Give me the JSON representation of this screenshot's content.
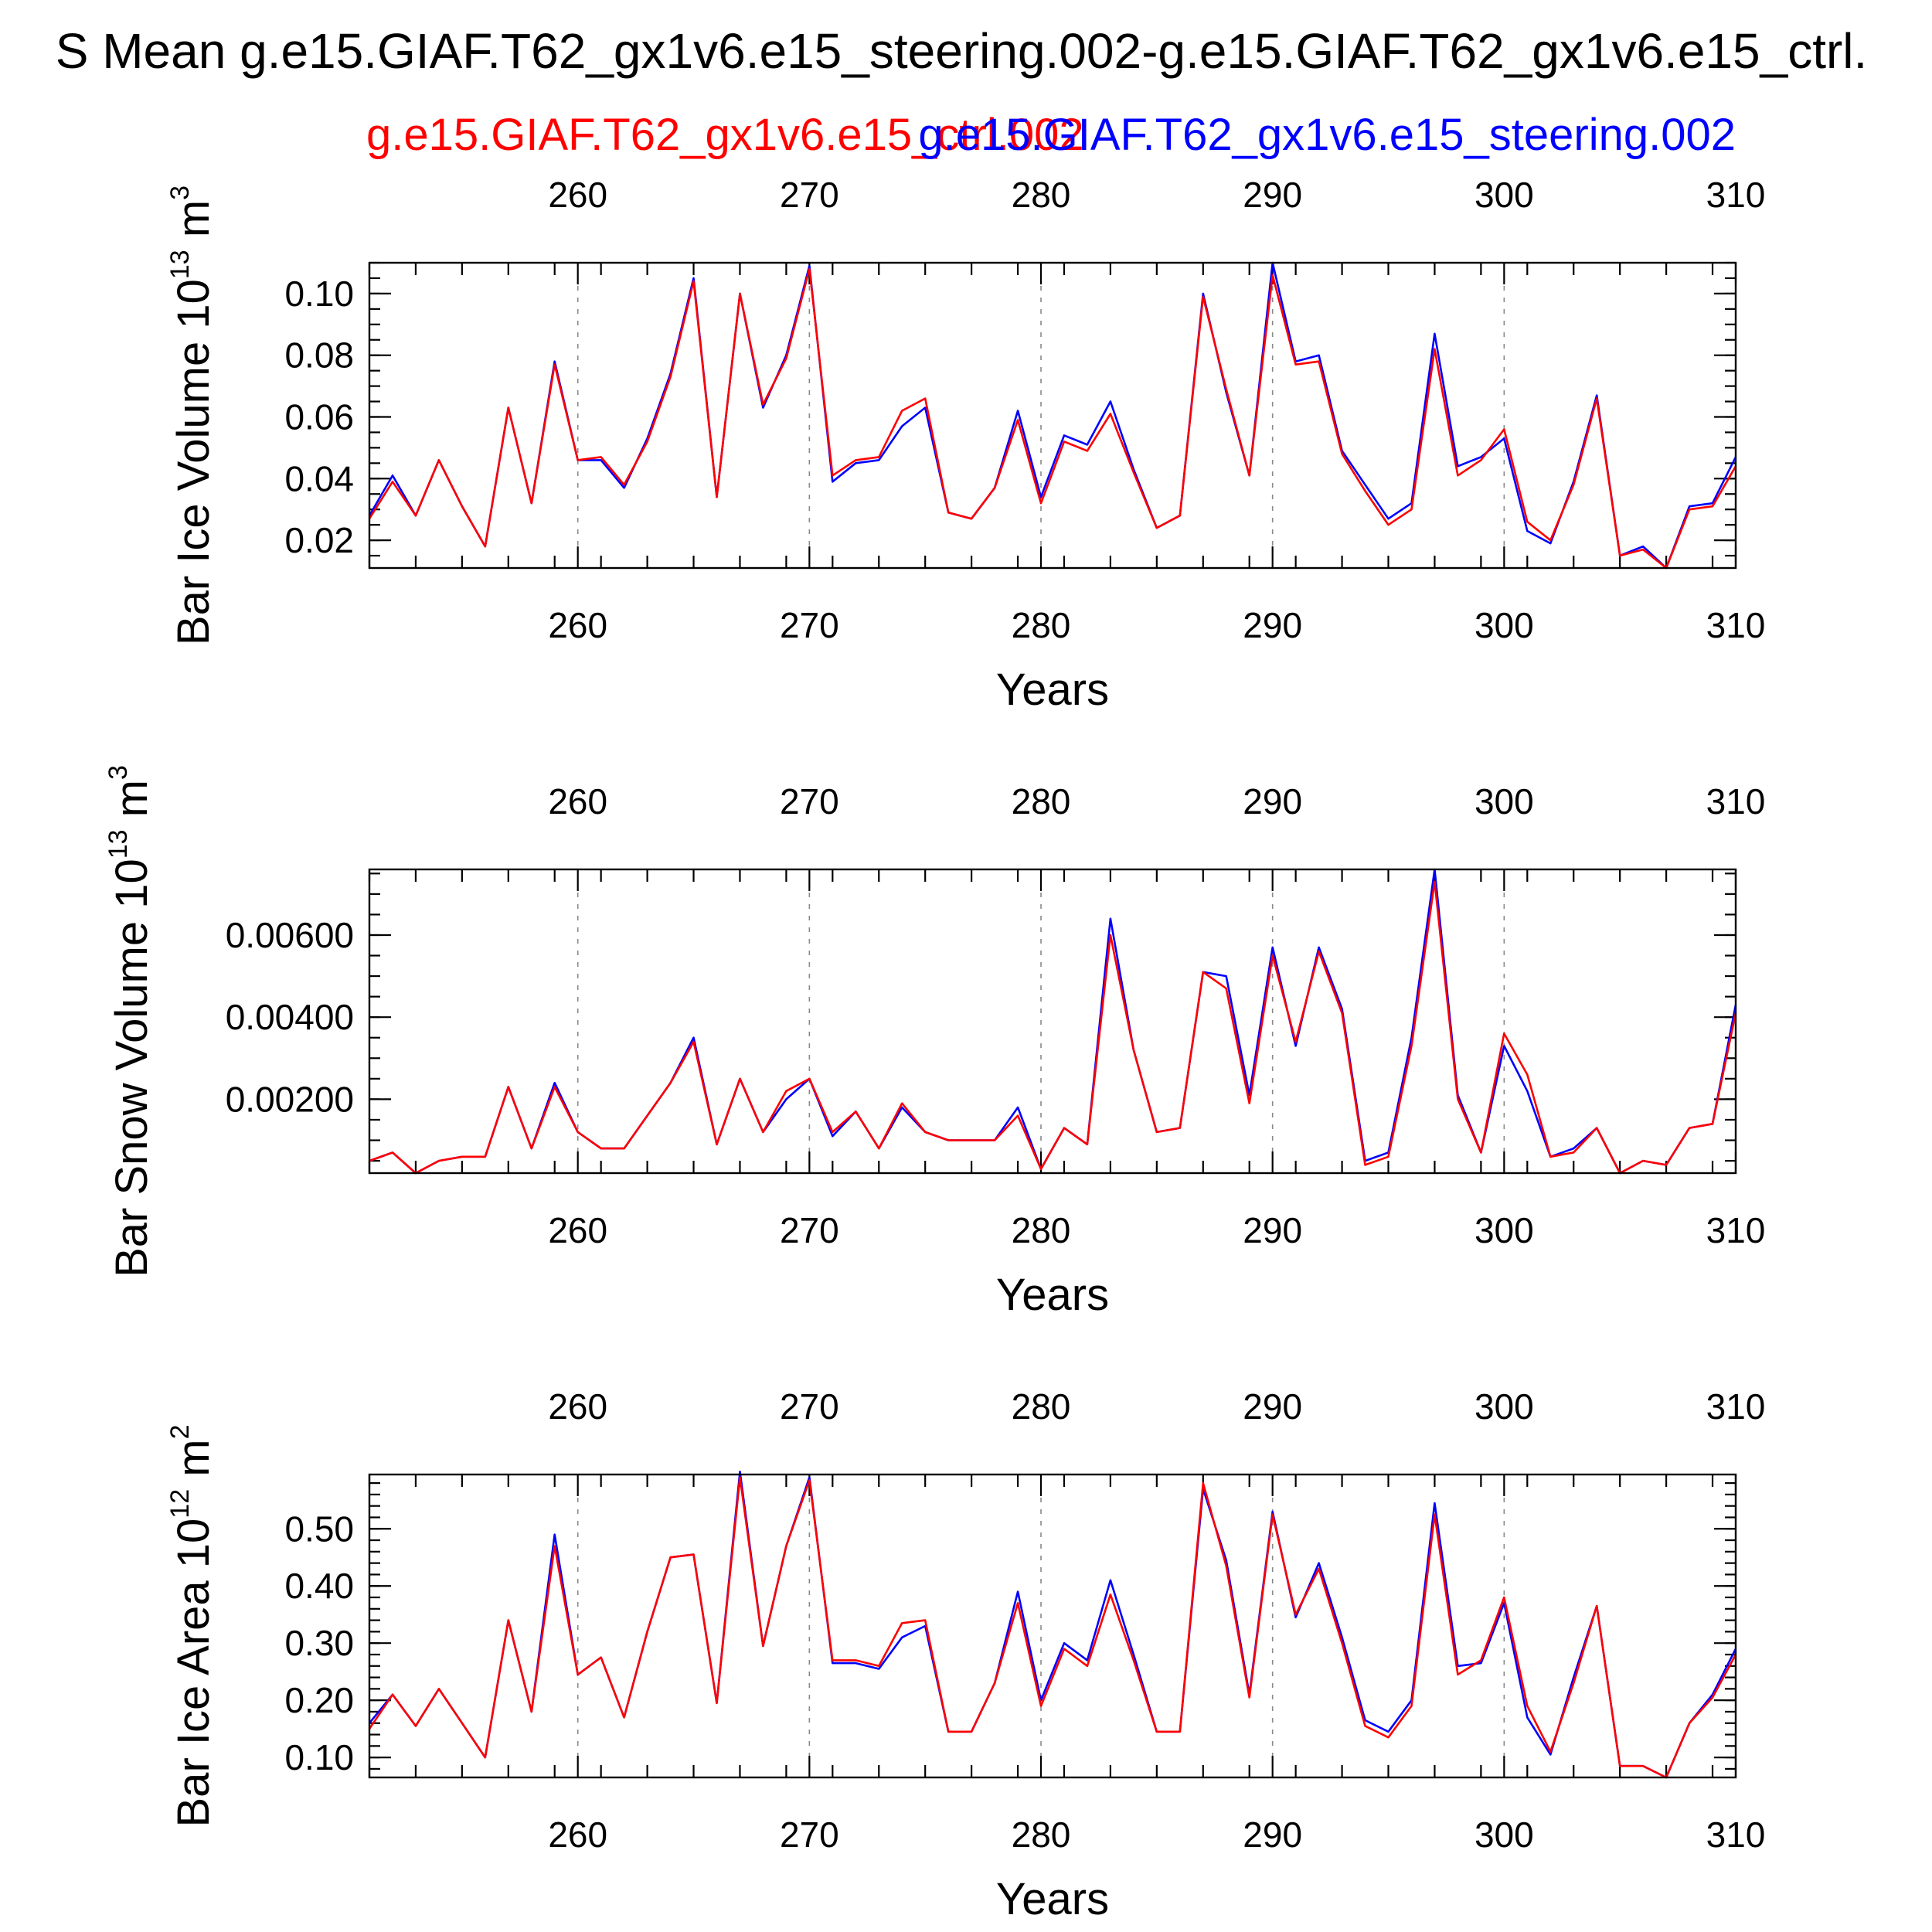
{
  "figure": {
    "title": "S Mean g.e15.GIAF.T62_gx1v6.e15_steering.002-g.e15.GIAF.T62_gx1v6.e15_ctrl.",
    "legend_red": "g.e15.GIAF.T62_gx1v6.e15_ctrl.002",
    "legend_blue": "g.e15.GIAF.T62_gx1v6.e15_steering.002"
  },
  "colors": {
    "red": "#ff0000",
    "blue": "#0000ff",
    "frame": "#000000",
    "grid": "#888888"
  },
  "chart_data": [
    {
      "type": "line",
      "name": "ice-volume",
      "ylabel": {
        "main": "Bar Ice Volume 10",
        "exp": "13",
        "unit": " m",
        "unit_exp": "3"
      },
      "xlabel": "Years",
      "xlim": [
        251,
        310
      ],
      "ylim": [
        0.011,
        0.11
      ],
      "yticks": [
        0.02,
        0.04,
        0.06,
        0.08,
        0.1
      ],
      "ytick_labels": [
        "0.02",
        "0.04",
        "0.06",
        "0.08",
        "0.10"
      ],
      "yminor_step": 0.005,
      "xticks": [
        260,
        270,
        280,
        290,
        300,
        310
      ],
      "xtick_labels": [
        "260",
        "270",
        "280",
        "290",
        "300",
        "310"
      ],
      "grid": "x-dashed",
      "x": [
        251,
        252,
        253,
        254,
        255,
        256,
        257,
        258,
        259,
        260,
        261,
        262,
        263,
        264,
        265,
        266,
        267,
        268,
        269,
        270,
        271,
        272,
        273,
        274,
        275,
        276,
        277,
        278,
        279,
        280,
        281,
        282,
        283,
        284,
        285,
        286,
        287,
        288,
        289,
        290,
        291,
        292,
        293,
        294,
        295,
        296,
        297,
        298,
        299,
        300,
        301,
        302,
        303,
        304,
        305,
        306,
        307,
        308,
        309,
        310
      ],
      "series": [
        {
          "name": "g.e15.GIAF.T62_gx1v6.e15_steering.002",
          "color": "#0000ff",
          "values": [
            0.028,
            0.041,
            0.028,
            0.046,
            0.031,
            0.018,
            0.063,
            0.032,
            0.078,
            0.046,
            0.046,
            0.037,
            0.053,
            0.074,
            0.105,
            0.034,
            0.1,
            0.063,
            0.08,
            0.109,
            0.039,
            0.045,
            0.046,
            0.057,
            0.063,
            0.029,
            0.027,
            0.037,
            0.062,
            0.034,
            0.054,
            0.051,
            0.065,
            0.043,
            0.024,
            0.028,
            0.1,
            0.068,
            0.041,
            0.11,
            0.078,
            0.08,
            0.049,
            0.038,
            0.027,
            0.032,
            0.087,
            0.044,
            0.047,
            0.053,
            0.023,
            0.019,
            0.039,
            0.067,
            0.015,
            0.018,
            0.011,
            0.031,
            0.032,
            0.047
          ]
        },
        {
          "name": "g.e15.GIAF.T62_gx1v6.e15_ctrl.002",
          "color": "#ff0000",
          "values": [
            0.027,
            0.039,
            0.028,
            0.046,
            0.031,
            0.018,
            0.063,
            0.032,
            0.077,
            0.046,
            0.047,
            0.038,
            0.052,
            0.073,
            0.104,
            0.034,
            0.1,
            0.064,
            0.079,
            0.108,
            0.041,
            0.046,
            0.047,
            0.062,
            0.066,
            0.029,
            0.027,
            0.037,
            0.059,
            0.032,
            0.052,
            0.049,
            0.061,
            0.042,
            0.024,
            0.028,
            0.099,
            0.069,
            0.041,
            0.106,
            0.077,
            0.078,
            0.048,
            0.036,
            0.025,
            0.03,
            0.082,
            0.041,
            0.046,
            0.056,
            0.026,
            0.02,
            0.038,
            0.066,
            0.015,
            0.017,
            0.011,
            0.03,
            0.031,
            0.044
          ]
        }
      ]
    },
    {
      "type": "line",
      "name": "snow-volume",
      "ylabel": {
        "main": "Bar Snow Volume 10",
        "exp": "13",
        "unit": " m",
        "unit_exp": "3"
      },
      "xlabel": "Years",
      "xlim": [
        251,
        310
      ],
      "ylim": [
        0.0002,
        0.0076
      ],
      "yticks": [
        0.002,
        0.004,
        0.006
      ],
      "ytick_labels": [
        "0.00200",
        "0.00400",
        "0.00600"
      ],
      "yminor_step": 0.0005,
      "xticks": [
        260,
        270,
        280,
        290,
        300,
        310
      ],
      "xtick_labels": [
        "260",
        "270",
        "280",
        "290",
        "300",
        "310"
      ],
      "grid": "x-dashed",
      "x": [
        251,
        252,
        253,
        254,
        255,
        256,
        257,
        258,
        259,
        260,
        261,
        262,
        263,
        264,
        265,
        266,
        267,
        268,
        269,
        270,
        271,
        272,
        273,
        274,
        275,
        276,
        277,
        278,
        279,
        280,
        281,
        282,
        283,
        284,
        285,
        286,
        287,
        288,
        289,
        290,
        291,
        292,
        293,
        294,
        295,
        296,
        297,
        298,
        299,
        300,
        301,
        302,
        303,
        304,
        305,
        306,
        307,
        308,
        309,
        310
      ],
      "series": [
        {
          "name": "g.e15.GIAF.T62_gx1v6.e15_steering.002",
          "color": "#0000ff",
          "values": [
            0.0005,
            0.0007,
            0.0002,
            0.0005,
            0.0006,
            0.0006,
            0.0023,
            0.0008,
            0.0024,
            0.0012,
            0.0008,
            0.0008,
            0.0016,
            0.0024,
            0.0035,
            0.0009,
            0.0025,
            0.0012,
            0.002,
            0.0025,
            0.0011,
            0.0017,
            0.0008,
            0.0018,
            0.0012,
            0.001,
            0.001,
            0.001,
            0.0018,
            0.0003,
            0.0013,
            0.0009,
            0.0064,
            0.0032,
            0.0012,
            0.0013,
            0.0051,
            0.005,
            0.0021,
            0.0057,
            0.0033,
            0.0057,
            0.0042,
            0.0005,
            0.0007,
            0.0035,
            0.0076,
            0.0021,
            0.0007,
            0.0033,
            0.0022,
            0.0006,
            0.0008,
            0.0013,
            0.0002,
            0.0005,
            0.0004,
            0.0013,
            0.0014,
            0.0043
          ]
        },
        {
          "name": "g.e15.GIAF.T62_gx1v6.e15_ctrl.002",
          "color": "#ff0000",
          "values": [
            0.0005,
            0.0007,
            0.0002,
            0.0005,
            0.0006,
            0.0006,
            0.0023,
            0.0008,
            0.0023,
            0.0012,
            0.0008,
            0.0008,
            0.0016,
            0.0024,
            0.0034,
            0.0009,
            0.0025,
            0.0012,
            0.0022,
            0.0025,
            0.0012,
            0.0017,
            0.0008,
            0.0019,
            0.0012,
            0.001,
            0.001,
            0.001,
            0.0016,
            0.0003,
            0.0013,
            0.0009,
            0.006,
            0.0032,
            0.0012,
            0.0013,
            0.0051,
            0.0047,
            0.0019,
            0.0055,
            0.0034,
            0.0056,
            0.0041,
            0.0004,
            0.0006,
            0.0033,
            0.0073,
            0.002,
            0.0007,
            0.0036,
            0.0026,
            0.0006,
            0.0007,
            0.0013,
            0.0002,
            0.0005,
            0.0004,
            0.0013,
            0.0014,
            0.0041
          ]
        }
      ]
    },
    {
      "type": "line",
      "name": "ice-area",
      "ylabel": {
        "main": "Bar Ice Area 10",
        "exp": "12",
        "unit": " m",
        "unit_exp": "2"
      },
      "xlabel": "Years",
      "xlim": [
        251,
        310
      ],
      "ylim": [
        0.065,
        0.595
      ],
      "yticks": [
        0.1,
        0.2,
        0.3,
        0.4,
        0.5
      ],
      "ytick_labels": [
        "0.10",
        "0.20",
        "0.30",
        "0.40",
        "0.50"
      ],
      "yminor_step": 0.02,
      "xticks": [
        260,
        270,
        280,
        290,
        300,
        310
      ],
      "xtick_labels": [
        "260",
        "270",
        "280",
        "290",
        "300",
        "310"
      ],
      "grid": "x-dashed",
      "x": [
        251,
        252,
        253,
        254,
        255,
        256,
        257,
        258,
        259,
        260,
        261,
        262,
        263,
        264,
        265,
        266,
        267,
        268,
        269,
        270,
        271,
        272,
        273,
        274,
        275,
        276,
        277,
        278,
        279,
        280,
        281,
        282,
        283,
        284,
        285,
        286,
        287,
        288,
        289,
        290,
        291,
        292,
        293,
        294,
        295,
        296,
        297,
        298,
        299,
        300,
        301,
        302,
        303,
        304,
        305,
        306,
        307,
        308,
        309,
        310
      ],
      "series": [
        {
          "name": "g.e15.GIAF.T62_gx1v6.e15_steering.002",
          "color": "#0000ff",
          "values": [
            0.16,
            0.21,
            0.155,
            0.22,
            0.16,
            0.1,
            0.34,
            0.18,
            0.49,
            0.245,
            0.275,
            0.17,
            0.32,
            0.45,
            0.455,
            0.195,
            0.6,
            0.295,
            0.47,
            0.59,
            0.265,
            0.265,
            0.255,
            0.31,
            0.33,
            0.145,
            0.145,
            0.23,
            0.39,
            0.2,
            0.3,
            0.27,
            0.41,
            0.28,
            0.145,
            0.145,
            0.57,
            0.445,
            0.21,
            0.53,
            0.345,
            0.44,
            0.31,
            0.165,
            0.145,
            0.2,
            0.545,
            0.26,
            0.265,
            0.37,
            0.17,
            0.105,
            0.24,
            0.365,
            0.085,
            0.085,
            0.065,
            0.16,
            0.21,
            0.29
          ]
        },
        {
          "name": "g.e15.GIAF.T62_gx1v6.e15_ctrl.002",
          "color": "#ff0000",
          "values": [
            0.15,
            0.21,
            0.155,
            0.22,
            0.16,
            0.1,
            0.34,
            0.18,
            0.47,
            0.245,
            0.275,
            0.17,
            0.32,
            0.45,
            0.455,
            0.195,
            0.59,
            0.295,
            0.47,
            0.585,
            0.27,
            0.27,
            0.26,
            0.335,
            0.34,
            0.145,
            0.145,
            0.23,
            0.37,
            0.19,
            0.29,
            0.26,
            0.385,
            0.27,
            0.145,
            0.145,
            0.58,
            0.435,
            0.205,
            0.525,
            0.35,
            0.43,
            0.3,
            0.155,
            0.135,
            0.19,
            0.525,
            0.245,
            0.27,
            0.38,
            0.19,
            0.11,
            0.23,
            0.365,
            0.085,
            0.085,
            0.065,
            0.16,
            0.205,
            0.28
          ]
        }
      ]
    }
  ]
}
